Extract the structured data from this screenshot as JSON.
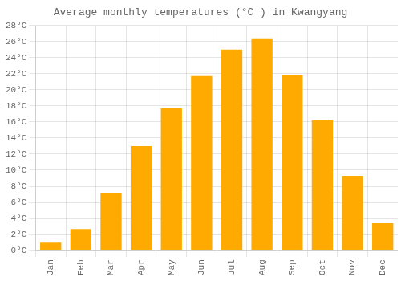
{
  "chart_data": {
    "type": "bar",
    "title": "Average monthly temperatures (°C ) in Kwangyang",
    "categories": [
      "Jan",
      "Feb",
      "Mar",
      "Apr",
      "May",
      "Jun",
      "Jul",
      "Aug",
      "Sep",
      "Oct",
      "Nov",
      "Dec"
    ],
    "values": [
      1.0,
      2.7,
      7.2,
      13.0,
      17.7,
      21.7,
      25.0,
      26.4,
      21.8,
      16.2,
      9.3,
      3.4
    ],
    "color": "#FFAA00",
    "ylim": [
      0,
      28
    ],
    "yticks": [
      {
        "value": 0,
        "label": "0°C"
      },
      {
        "value": 2,
        "label": "2°C"
      },
      {
        "value": 4,
        "label": "4°C"
      },
      {
        "value": 6,
        "label": "6°C"
      },
      {
        "value": 8,
        "label": "8°C"
      },
      {
        "value": 10,
        "label": "10°C"
      },
      {
        "value": 12,
        "label": "12°C"
      },
      {
        "value": 14,
        "label": "14°C"
      },
      {
        "value": 16,
        "label": "16°C"
      },
      {
        "value": 18,
        "label": "18°C"
      },
      {
        "value": 20,
        "label": "20°C"
      },
      {
        "value": 22,
        "label": "22°C"
      },
      {
        "value": 24,
        "label": "24°C"
      },
      {
        "value": 26,
        "label": "26°C"
      },
      {
        "value": 28,
        "label": "28°C"
      }
    ],
    "grid": true
  }
}
